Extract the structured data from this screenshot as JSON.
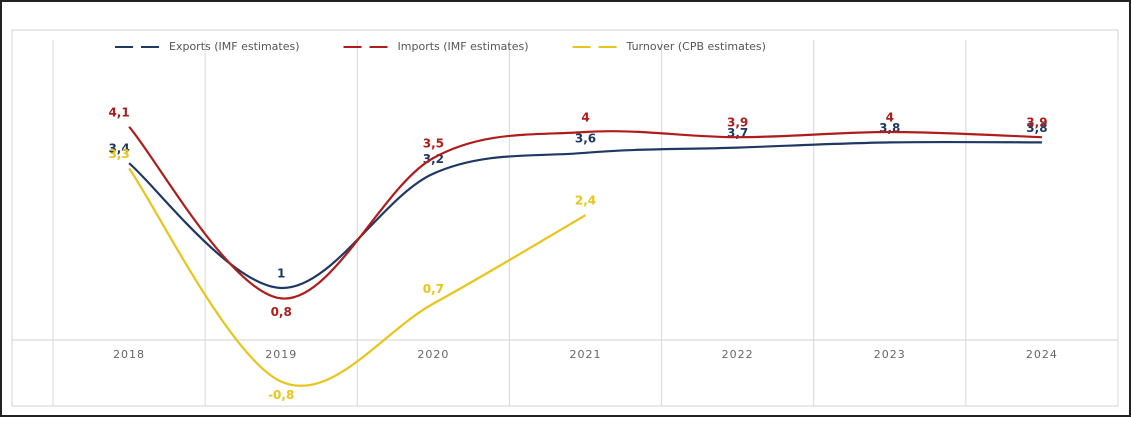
{
  "chart_data": {
    "type": "line",
    "categories": [
      "2018",
      "2019",
      "2020",
      "2021",
      "2022",
      "2023",
      "2024"
    ],
    "series": [
      {
        "name": "Exports (IMF estimates)",
        "color": "#1f3864",
        "values": [
          3.4,
          1,
          3.2,
          3.6,
          3.7,
          3.8,
          3.8
        ],
        "value_labels": [
          "3,4",
          "1",
          "3,2",
          "3,6",
          "3,7",
          "3,8",
          "3,8"
        ]
      },
      {
        "name": "Imports (IMF estimates)",
        "color": "#b01c1c",
        "values": [
          4.1,
          0.8,
          3.5,
          4,
          3.9,
          4,
          3.9
        ],
        "value_labels": [
          "4,1",
          "0,8",
          "3,5",
          "4",
          "3,9",
          "4",
          "3,9"
        ]
      },
      {
        "name": "Turnover (CPB estimates)",
        "color": "#e8c51a",
        "values": [
          3.3,
          -0.8,
          0.7,
          2.4,
          null,
          null,
          null
        ],
        "value_labels": [
          "3,3",
          "-0,8",
          "0,7",
          "2,4",
          null,
          null,
          null
        ]
      }
    ],
    "ylim": [
      -1,
      4.5
    ],
    "legend": "top",
    "grid": true
  }
}
